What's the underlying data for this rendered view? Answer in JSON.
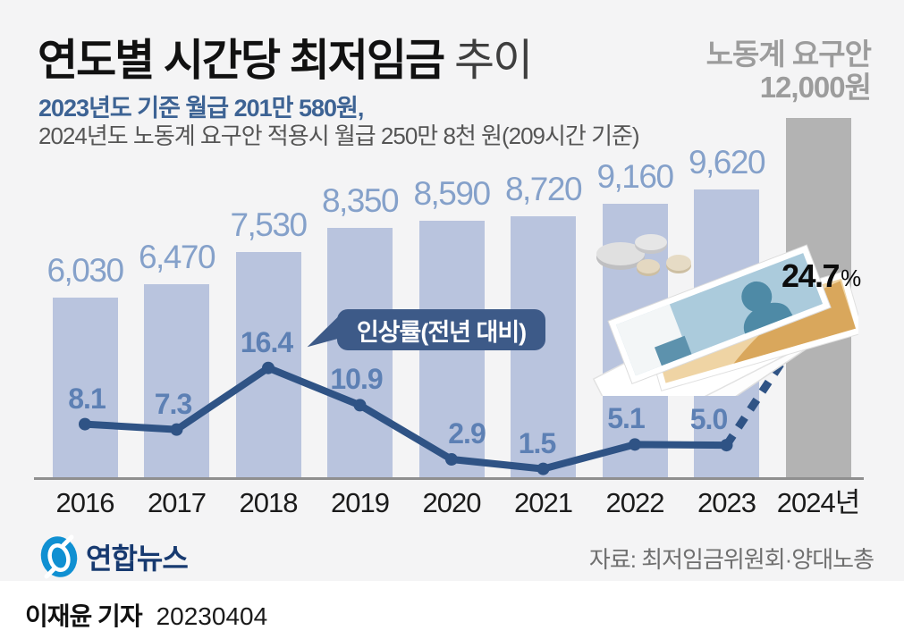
{
  "header": {
    "title_bold": "연도별 시간당 최저임금",
    "title_light": "추이",
    "subtitle_highlight": "2023년도 기준 월급 201만 580원,",
    "subtitle_detail": "2024년도 노동계 요구안 적용시 월급 250만 8천 원(209시간 기준)",
    "demand_line1": "노동계 요구안",
    "demand_line2": "12,000원"
  },
  "chart_data": {
    "type": "bar",
    "title": "연도별 시간당 최저임금 추이",
    "categories": [
      "2016",
      "2017",
      "2018",
      "2019",
      "2020",
      "2021",
      "2022",
      "2023",
      "2024년"
    ],
    "series": [
      {
        "name": "시간당 최저임금(원)",
        "type": "bar",
        "values": [
          6030,
          6470,
          7530,
          8350,
          8590,
          8720,
          9160,
          9620,
          12000
        ],
        "value_labels": [
          "6,030",
          "6,470",
          "7,530",
          "8,350",
          "8,590",
          "8,720",
          "9,160",
          "9,620"
        ]
      },
      {
        "name": "인상률(전년 대비, %)",
        "type": "line",
        "values": [
          8.1,
          7.3,
          16.4,
          10.9,
          2.9,
          1.5,
          5.1,
          5.0,
          24.7
        ],
        "value_labels": [
          "8.1",
          "7.3",
          "16.4",
          "10.9",
          "2.9",
          "1.5",
          "5.1",
          "5.0"
        ]
      }
    ],
    "callout_label": "인상률(전년 대비)",
    "highlight": {
      "value": "24.7",
      "unit": "%"
    },
    "bar_note": "2024 bar shows labor-side demand 12,000원 in gray; line segment 2023→2024 is dashed",
    "ylim": [
      0,
      12000
    ],
    "legend_position": "callout",
    "grid": false,
    "colors": {
      "bar": "#b9c4de",
      "bar_demand": "#b3b3b3",
      "line": "#2f5385",
      "bar_label": "#85a1ca",
      "rate_label": "#5d80b4",
      "demand_text": "#9c9c9c",
      "callout_bg": "#3d5a88"
    }
  },
  "footer": {
    "logo_text": "연합뉴스",
    "source": "자료: 최저임금위원회·양대노총",
    "byline_name": "이재윤 기자",
    "byline_date": "20230404"
  }
}
